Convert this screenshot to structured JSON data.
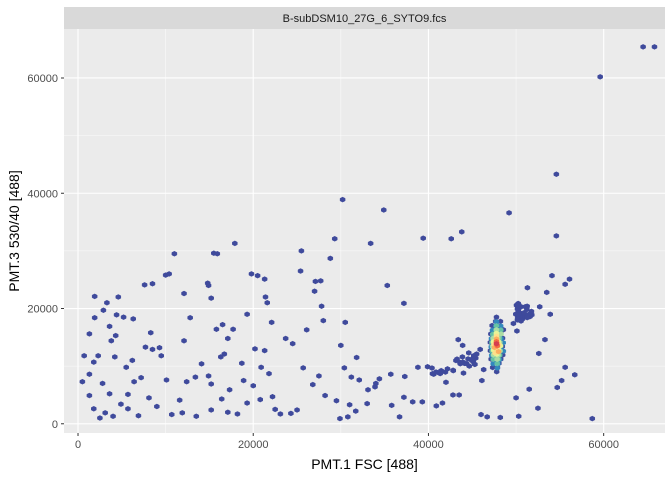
{
  "chart_data": {
    "type": "scatter",
    "subtype": "hexbin-density",
    "facet_title": "B-subDSM10_27G_6_SYTO9.fcs",
    "xlabel": "PMT.1 FSC [488]",
    "ylabel": "PMT.3 530/40 [488]",
    "xlim": [
      -1600,
      67000
    ],
    "ylim": [
      -1600,
      68500
    ],
    "x_ticks": [
      0,
      20000,
      40000,
      60000
    ],
    "x_tick_labels": [
      "0",
      "20000",
      "40000",
      "60000"
    ],
    "y_ticks": [
      0,
      20000,
      40000,
      60000
    ],
    "y_tick_labels": [
      "0",
      "20000",
      "40000",
      "60000"
    ],
    "grid": true,
    "colors": {
      "panel_bg": "#ebebeb",
      "strip_bg": "#d9d9d9",
      "grid_major": "#ffffff",
      "low_density": "#3f4a9c",
      "palette": [
        "#3f4a9c",
        "#3288bd",
        "#66c2a5",
        "#abdda4",
        "#e6f598",
        "#fee08b",
        "#fdae61",
        "#f46d43",
        "#d53e4f"
      ]
    },
    "cluster": {
      "center": [
        47900,
        13600
      ],
      "rings": [
        {
          "dx": 700,
          "dy": 4900,
          "level": 0
        },
        {
          "dx": 600,
          "dy": 4100,
          "level": 1
        },
        {
          "dx": 520,
          "dy": 3400,
          "level": 2
        },
        {
          "dx": 440,
          "dy": 2700,
          "level": 3
        },
        {
          "dx": 360,
          "dy": 2100,
          "level": 4
        },
        {
          "dx": 290,
          "dy": 1600,
          "level": 5
        },
        {
          "dx": 230,
          "dy": 1100,
          "level": 6
        },
        {
          "dx": 170,
          "dy": 650,
          "level": 7
        },
        {
          "dx": 110,
          "dy": 280,
          "level": 8
        }
      ]
    },
    "points": [
      [
        64500,
        65400
      ],
      [
        65800,
        65400
      ],
      [
        59600,
        60200
      ],
      [
        54600,
        43300
      ],
      [
        30200,
        38900
      ],
      [
        34900,
        37100
      ],
      [
        49200,
        36600
      ],
      [
        54600,
        32600
      ],
      [
        43800,
        33300
      ],
      [
        29300,
        32100
      ],
      [
        33400,
        31300
      ],
      [
        39400,
        32200
      ],
      [
        42600,
        32100
      ],
      [
        17900,
        31300
      ],
      [
        11000,
        29500
      ],
      [
        15500,
        29600
      ],
      [
        15900,
        29500
      ],
      [
        25500,
        30000
      ],
      [
        28800,
        28700
      ],
      [
        1900,
        22100
      ],
      [
        4600,
        22000
      ],
      [
        3300,
        21000
      ],
      [
        8500,
        24300
      ],
      [
        7600,
        24100
      ],
      [
        10000,
        25800
      ],
      [
        10400,
        26000
      ],
      [
        12100,
        22600
      ],
      [
        14800,
        24400
      ],
      [
        14900,
        24000
      ],
      [
        15200,
        21800
      ],
      [
        19800,
        26000
      ],
      [
        20500,
        25700
      ],
      [
        21300,
        25100
      ],
      [
        21400,
        22000
      ],
      [
        21600,
        21000
      ],
      [
        25400,
        26500
      ],
      [
        27100,
        24700
      ],
      [
        27700,
        24800
      ],
      [
        27000,
        23000
      ],
      [
        22100,
        17600
      ],
      [
        12100,
        14400
      ],
      [
        15800,
        16400
      ],
      [
        16500,
        17200
      ],
      [
        17700,
        16400
      ],
      [
        21300,
        12700
      ],
      [
        23700,
        14800
      ],
      [
        20200,
        13000
      ],
      [
        24500,
        13900
      ],
      [
        26100,
        16300
      ],
      [
        28000,
        17900
      ],
      [
        30500,
        17600
      ],
      [
        30000,
        13600
      ],
      [
        35300,
        24000
      ],
      [
        37200,
        20900
      ],
      [
        45900,
        12900
      ],
      [
        45500,
        12100
      ],
      [
        43400,
        14600
      ],
      [
        43900,
        13600
      ],
      [
        44600,
        12300
      ],
      [
        45400,
        11400
      ],
      [
        39900,
        9900
      ],
      [
        38800,
        9800
      ],
      [
        37300,
        8200
      ],
      [
        35700,
        8600
      ],
      [
        34400,
        7800
      ],
      [
        34000,
        7000
      ],
      [
        32100,
        7600
      ],
      [
        31200,
        8100
      ],
      [
        33100,
        5900
      ],
      [
        33900,
        6400
      ],
      [
        37200,
        4600
      ],
      [
        38200,
        3800
      ],
      [
        39300,
        3800
      ],
      [
        40900,
        3100
      ],
      [
        41600,
        3600
      ],
      [
        42800,
        5000
      ],
      [
        43500,
        5000
      ],
      [
        46000,
        1600
      ],
      [
        46700,
        1200
      ],
      [
        48200,
        1100
      ],
      [
        50300,
        1300
      ],
      [
        52500,
        2700
      ],
      [
        54700,
        6300
      ],
      [
        55200,
        7500
      ],
      [
        55600,
        9800
      ],
      [
        56700,
        8500
      ],
      [
        58700,
        900
      ],
      [
        29900,
        900
      ],
      [
        30800,
        1200
      ],
      [
        31700,
        2200
      ],
      [
        31000,
        3300
      ],
      [
        29500,
        4000
      ],
      [
        28200,
        4900
      ],
      [
        26800,
        6800
      ],
      [
        27500,
        8300
      ],
      [
        25700,
        9700
      ],
      [
        25000,
        2400
      ],
      [
        24300,
        1800
      ],
      [
        23100,
        1700
      ],
      [
        22500,
        2500
      ],
      [
        20800,
        4200
      ],
      [
        20000,
        6600
      ],
      [
        18900,
        7500
      ],
      [
        17300,
        5900
      ],
      [
        16400,
        4300
      ],
      [
        15200,
        6900
      ],
      [
        13400,
        8100
      ],
      [
        11600,
        4100
      ],
      [
        10700,
        1600
      ],
      [
        11900,
        1900
      ],
      [
        13500,
        1300
      ],
      [
        15200,
        2400
      ],
      [
        17100,
        2000
      ],
      [
        18200,
        1700
      ],
      [
        19300,
        3600
      ],
      [
        10100,
        7600
      ],
      [
        9500,
        11800
      ],
      [
        9300,
        13200
      ],
      [
        8500,
        12900
      ],
      [
        7700,
        13300
      ],
      [
        8300,
        15800
      ],
      [
        6300,
        18200
      ],
      [
        5200,
        18500
      ],
      [
        4300,
        15300
      ],
      [
        3800,
        14400
      ],
      [
        2900,
        19700
      ],
      [
        1900,
        18400
      ],
      [
        1300,
        15600
      ],
      [
        700,
        11800
      ],
      [
        1300,
        8600
      ],
      [
        500,
        7300
      ],
      [
        1300,
        4900
      ],
      [
        1800,
        2600
      ],
      [
        2500,
        1000
      ],
      [
        3100,
        1900
      ],
      [
        4000,
        1300
      ],
      [
        4900,
        3400
      ],
      [
        5700,
        5100
      ],
      [
        6400,
        7300
      ],
      [
        7200,
        8000
      ],
      [
        8100,
        4500
      ],
      [
        9000,
        3000
      ],
      [
        6900,
        1400
      ],
      [
        5700,
        2600
      ],
      [
        3600,
        5200
      ],
      [
        2800,
        7000
      ],
      [
        1800,
        10700
      ],
      [
        2300,
        11800
      ],
      [
        4200,
        11600
      ],
      [
        5500,
        9800
      ],
      [
        6200,
        11000
      ],
      [
        14100,
        10400
      ],
      [
        16300,
        11600
      ],
      [
        18700,
        10500
      ],
      [
        20900,
        9800
      ],
      [
        21800,
        8700
      ],
      [
        12800,
        18400
      ],
      [
        12400,
        7300
      ],
      [
        14900,
        8300
      ],
      [
        17100,
        14800
      ],
      [
        19300,
        19000
      ],
      [
        27800,
        20400
      ],
      [
        31800,
        11500
      ],
      [
        30400,
        9700
      ],
      [
        33000,
        3500
      ],
      [
        35800,
        3200
      ],
      [
        36700,
        1200
      ],
      [
        42000,
        7200
      ],
      [
        40600,
        8600
      ],
      [
        44000,
        8800
      ],
      [
        46300,
        9400
      ],
      [
        46100,
        7500
      ],
      [
        50000,
        4500
      ],
      [
        51500,
        6000
      ],
      [
        52600,
        12200
      ],
      [
        53300,
        14600
      ],
      [
        50100,
        16100
      ],
      [
        49700,
        17400
      ],
      [
        51800,
        18900
      ],
      [
        52700,
        20300
      ],
      [
        53500,
        22800
      ],
      [
        51300,
        23600
      ],
      [
        54100,
        25700
      ],
      [
        55600,
        24200
      ],
      [
        56100,
        25100
      ],
      [
        53900,
        19000
      ],
      [
        4400,
        18900
      ],
      [
        3600,
        16900
      ],
      [
        16700,
        12100
      ],
      [
        22200,
        4700
      ]
    ],
    "dense_regions": [
      {
        "center": [
          50700,
          19500
        ],
        "spread": [
          1100,
          1800
        ],
        "count": 34
      },
      {
        "center": [
          44300,
          11000
        ],
        "spread": [
          1400,
          1100
        ],
        "count": 18
      },
      {
        "center": [
          41400,
          9200
        ],
        "spread": [
          1500,
          700
        ],
        "count": 10
      }
    ]
  }
}
